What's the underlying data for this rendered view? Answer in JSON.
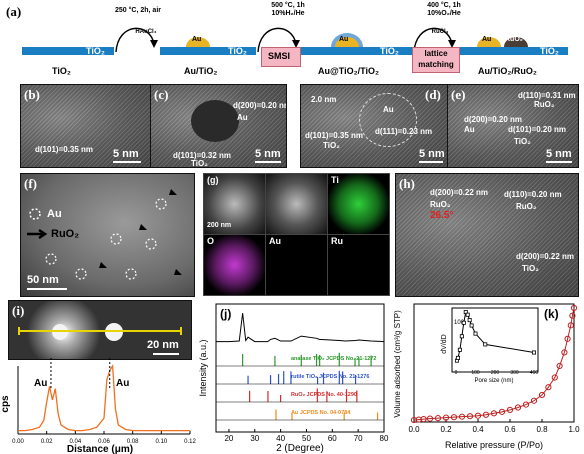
{
  "scheme": {
    "panel_letter": "(a)",
    "slab_text": "TiO₂",
    "step1": {
      "line1": "250 °C, 2h, air",
      "reagent": "HAuCl₄"
    },
    "step2": {
      "line1": "500 °C, 1h",
      "line2": "10%H₂/He",
      "box": "SMSI"
    },
    "step3": {
      "line1": "400 °C, 1h",
      "line2": "10%O₂/He",
      "reagent": "RuCl₃",
      "box_line1": "lattice",
      "box_line2": "matching"
    },
    "particles": {
      "au": "Au",
      "ruo2": "RuO₂"
    },
    "captions": [
      "TiO₂",
      "Au/TiO₂",
      "Au@TiO₂/TiO₂",
      "Au/TiO₂/RuO₂"
    ],
    "colors": {
      "slab": "#1a7ec2",
      "au": "#e8b423",
      "ruo2": "#4a3d35",
      "shell": "#6fa8d8",
      "box": "#f4b6c2"
    }
  },
  "tem_row": {
    "b": {
      "letter": "(b)",
      "lattice": "d(101)=0.35 nm",
      "scale": "5 nm"
    },
    "c": {
      "letter": "(c)",
      "lattice1": "d(200)=0.20 nm",
      "particle": "Au",
      "lattice2": "d(101)=0.32 nm",
      "support": "TiO₂",
      "scale": "5 nm"
    },
    "d": {
      "letter": "(d)",
      "shell": "2.0 nm",
      "particle": "Au",
      "lattice1": "d(111)=0.23 nm",
      "lattice2": "d(101)=0.35 nm",
      "support": "TiO₂",
      "scale": "5 nm"
    },
    "e": {
      "letter": "(e)",
      "lattice1": "d(110)=0.31 nm",
      "ruo2": "RuO₂",
      "lattice2": "d(200)=0.20 nm",
      "particle": "Au",
      "lattice3": "d(101)=0.20 nm",
      "support": "TiO₂",
      "scale": "5 nm"
    }
  },
  "panel_f": {
    "letter": "(f)",
    "legend_au": "Au",
    "legend_ruo2": "RuO₂",
    "scale": "50 nm"
  },
  "panel_g": {
    "letter": "(g)",
    "scale": "200 nm",
    "elements": [
      "Ti",
      "O",
      "Au",
      "Ru"
    ],
    "colors": {
      "Ti": "#2fcf3a",
      "O": "#c23ad1",
      "Au": "#d6d6d6",
      "Ru": "#cfcfcf"
    }
  },
  "panel_h": {
    "letter": "(h)",
    "lattice1": "d(200)=0.22 nm",
    "lattice2": "d(110)=0.20 nm",
    "ruo2_a": "RuO₂",
    "ruo2_b": "RuO₂",
    "angle": "26.5°",
    "lattice3": "d(200)=0.22 nm",
    "support": "TiO₂"
  },
  "panel_i": {
    "letter": "(i)",
    "scale": "20 nm",
    "peak_label_1": "Au",
    "peak_label_2": "Au",
    "ylabel": "cps",
    "xlabel": "Distance (μm)",
    "xticks": [
      "0.00",
      "0.02",
      "0.04",
      "0.06",
      "0.08",
      "0.10",
      "0.12"
    ]
  },
  "panel_j": {
    "letter": "(j)",
    "ylabel": "Intensity (a.u.)",
    "xlabel": "2  (Degree)",
    "xticks": [
      "20",
      "30",
      "40",
      "50",
      "60",
      "70",
      "80"
    ],
    "refs": [
      {
        "label": "anatase TiO₂ JCPDS No. 21-1272",
        "color": "#2a9a2a"
      },
      {
        "label": "rutile TiO₂  JCPDS No. 21-1276",
        "color": "#2a52c8"
      },
      {
        "label": "RuO₂       JCPDS No. 40-1290",
        "color": "#d42a2a"
      },
      {
        "label": "Au          JCPDS No. 04-0784",
        "color": "#f08a1a"
      }
    ]
  },
  "panel_k": {
    "letter": "(k)",
    "ylabel": "Volume adsorbed (cm³/g STP)",
    "xlabel": "Relative pressure (P/Po)",
    "xticks": [
      "0.0",
      "0.2",
      "0.4",
      "0.6",
      "0.8",
      "1.0"
    ],
    "inset_ylabel": "dV/dD",
    "inset_scale": "100",
    "inset_xlabel": "Pore size (nm)",
    "inset_xticks": [
      "0",
      "100",
      "200",
      "300",
      "400"
    ]
  },
  "chart_data": [
    {
      "type": "line",
      "panel": "(i)",
      "xlabel": "Distance (μm)",
      "ylabel": "cps",
      "xlim": [
        0.0,
        0.12
      ],
      "x": [
        0.0,
        0.005,
        0.01,
        0.015,
        0.018,
        0.02,
        0.022,
        0.024,
        0.026,
        0.028,
        0.03,
        0.035,
        0.04,
        0.045,
        0.05,
        0.055,
        0.06,
        0.062,
        0.064,
        0.066,
        0.068,
        0.07,
        0.075,
        0.08,
        0.09,
        0.1,
        0.11,
        0.12
      ],
      "y": [
        3,
        3,
        4,
        6,
        12,
        28,
        42,
        30,
        40,
        18,
        8,
        4,
        3,
        3,
        4,
        6,
        14,
        48,
        56,
        60,
        22,
        8,
        4,
        3,
        3,
        3,
        3,
        3
      ]
    },
    {
      "type": "line",
      "panel": "(j)",
      "xlabel": "2  (Degree)",
      "ylabel": "Intensity (a.u.)",
      "xlim": [
        15,
        80
      ],
      "x": [
        15,
        20,
        24,
        25.3,
        26.5,
        27.4,
        30,
        35,
        36.1,
        37.8,
        40,
        44,
        48,
        53.9,
        55,
        62.7,
        65,
        69,
        70.3,
        75,
        80
      ],
      "y": [
        8,
        8,
        9,
        60,
        10,
        16,
        8,
        8,
        12,
        14,
        9,
        9,
        18,
        14,
        12,
        10,
        9,
        10,
        11,
        9,
        8
      ],
      "references": [
        {
          "name": "anatase",
          "peaks": [
            25.3,
            37.8,
            48.0,
            53.9,
            55.1,
            62.7,
            68.8,
            70.3,
            75.0
          ]
        },
        {
          "name": "rutile",
          "peaks": [
            27.4,
            36.1,
            39.2,
            41.2,
            44.0,
            54.3,
            56.6,
            62.7,
            64.0,
            69.0
          ]
        },
        {
          "name": "RuO2",
          "peaks": [
            28.0,
            35.1,
            40.0,
            54.2,
            57.9,
            65.5,
            69.5
          ]
        },
        {
          "name": "Au",
          "peaks": [
            38.2,
            44.4,
            64.6,
            77.5
          ]
        }
      ]
    },
    {
      "type": "scatter",
      "panel": "(k)",
      "xlabel": "Relative pressure (P/Po)",
      "ylabel": "Volume adsorbed (cm³/g STP)",
      "xlim": [
        0.0,
        1.0
      ],
      "adsorption_x": [
        0.0,
        0.03,
        0.06,
        0.1,
        0.15,
        0.2,
        0.25,
        0.3,
        0.35,
        0.4,
        0.45,
        0.5,
        0.55,
        0.6,
        0.65,
        0.7,
        0.75,
        0.8,
        0.84,
        0.88,
        0.91,
        0.94,
        0.96,
        0.98,
        0.99,
        1.0
      ],
      "adsorption_y": [
        2,
        2.5,
        3,
        3.5,
        4,
        4.5,
        5,
        5.5,
        6,
        6.5,
        7.5,
        9,
        10.5,
        12.5,
        15,
        18,
        22,
        28,
        36,
        46,
        58,
        72,
        86,
        100,
        110,
        118
      ],
      "inset": {
        "type": "line",
        "xlabel": "Pore size (nm)",
        "xlim": [
          0,
          400
        ],
        "x": [
          5,
          10,
          20,
          30,
          40,
          50,
          60,
          70,
          80,
          100,
          150,
          400
        ],
        "y": [
          10,
          15,
          30,
          55,
          80,
          100,
          95,
          85,
          75,
          60,
          40,
          25
        ]
      }
    }
  ]
}
